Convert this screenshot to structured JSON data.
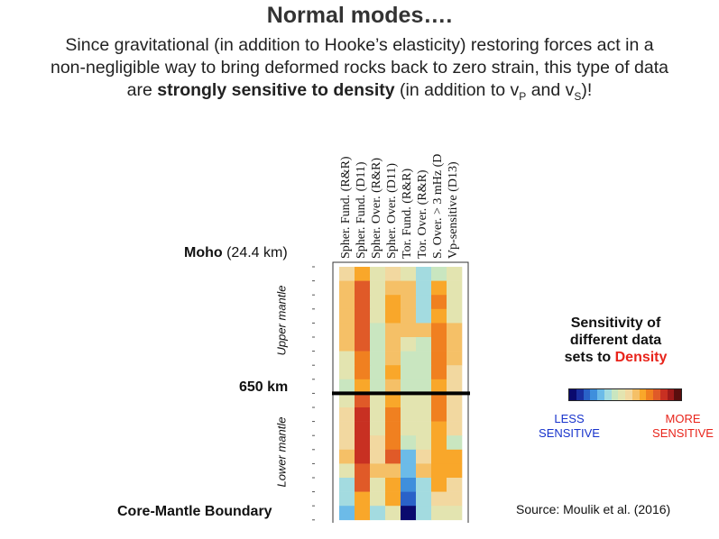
{
  "title": "Normal modes….",
  "subtitle": {
    "line1": "Since gravitational (in addition to Hooke’s elasticity) restoring forces act in a",
    "line2": "non-negligible way to bring deformed rocks back to zero strain, this type of data",
    "line3_pre": "are ",
    "line3_bold": "strongly sensitive to density",
    "line3_mid": " (in addition to v",
    "sub_p": "P",
    "and": " and v",
    "sub_s": "S",
    "end": ")!"
  },
  "columns": [
    "Spher. Fund. (R&R)",
    "Spher. Fund. (D11)",
    "Spher. Over. (R&R)",
    "Spher. Over. (D11)",
    "Tor. Fund. (R&R)",
    "Tor. Over. (R&R)",
    "S. Over. > 3 mHz (D",
    "Vp-sensitive (D13)"
  ],
  "labels": {
    "moho_bold": "Moho",
    "moho_depth": " (24.4 km)",
    "km650": "650 km",
    "cmb": "Core-Mantle Boundary",
    "upper": "Upper mantle",
    "lower": "Lower mantle"
  },
  "legend": {
    "title_line1": "Sensitivity of",
    "title_line2": "different data",
    "title_line3_pre": "sets to ",
    "title_density": "Density",
    "less_line1": "LESS",
    "less_line2": "SENSITIVE",
    "more_line1": "MORE",
    "more_line2": "SENSITIVE",
    "colors": [
      "#0a0a6e",
      "#1a2fa0",
      "#2a62c8",
      "#3f8fdc",
      "#6cbbe8",
      "#a3dbe0",
      "#c9e6c0",
      "#e3e4b0",
      "#f2d8a0",
      "#f5c067",
      "#f9a72a",
      "#f08020",
      "#e05a28",
      "#c83022",
      "#9e1a1a",
      "#5a0e0e"
    ]
  },
  "source": "Source: Moulik et al. (2016)",
  "chart_data": {
    "type": "heatmap",
    "description_rows": "depth bins from Moho (top) to Core-Mantle Boundary (bottom); rows 0-8 upper mantle, 9-17 lower mantle",
    "scale": "0 = less sensitive, 15 = more sensitive (colorbar index)",
    "values": [
      [
        8,
        10,
        7,
        8,
        7,
        5,
        6,
        7
      ],
      [
        9,
        12,
        7,
        9,
        9,
        5,
        10,
        7
      ],
      [
        9,
        12,
        7,
        10,
        9,
        5,
        11,
        7
      ],
      [
        9,
        12,
        7,
        10,
        9,
        5,
        10,
        7
      ],
      [
        9,
        12,
        6,
        9,
        9,
        9,
        11,
        9
      ],
      [
        9,
        12,
        6,
        9,
        7,
        6,
        11,
        9
      ],
      [
        7,
        11,
        6,
        9,
        6,
        6,
        11,
        9
      ],
      [
        7,
        11,
        6,
        10,
        6,
        6,
        11,
        8
      ],
      [
        6,
        10,
        6,
        9,
        6,
        6,
        10,
        8
      ],
      [
        7,
        12,
        7,
        10,
        7,
        7,
        11,
        8
      ],
      [
        8,
        13,
        7,
        11,
        7,
        7,
        11,
        8
      ],
      [
        8,
        13,
        7,
        11,
        7,
        7,
        10,
        8
      ],
      [
        8,
        13,
        8,
        11,
        6,
        7,
        10,
        6
      ],
      [
        9,
        13,
        8,
        12,
        4,
        8,
        10,
        10
      ],
      [
        7,
        12,
        9,
        9,
        4,
        9,
        10,
        10
      ],
      [
        5,
        12,
        7,
        10,
        3,
        5,
        10,
        8
      ],
      [
        5,
        10,
        7,
        10,
        2,
        5,
        8,
        8
      ],
      [
        4,
        10,
        5,
        7,
        0,
        5,
        7,
        7
      ]
    ]
  }
}
